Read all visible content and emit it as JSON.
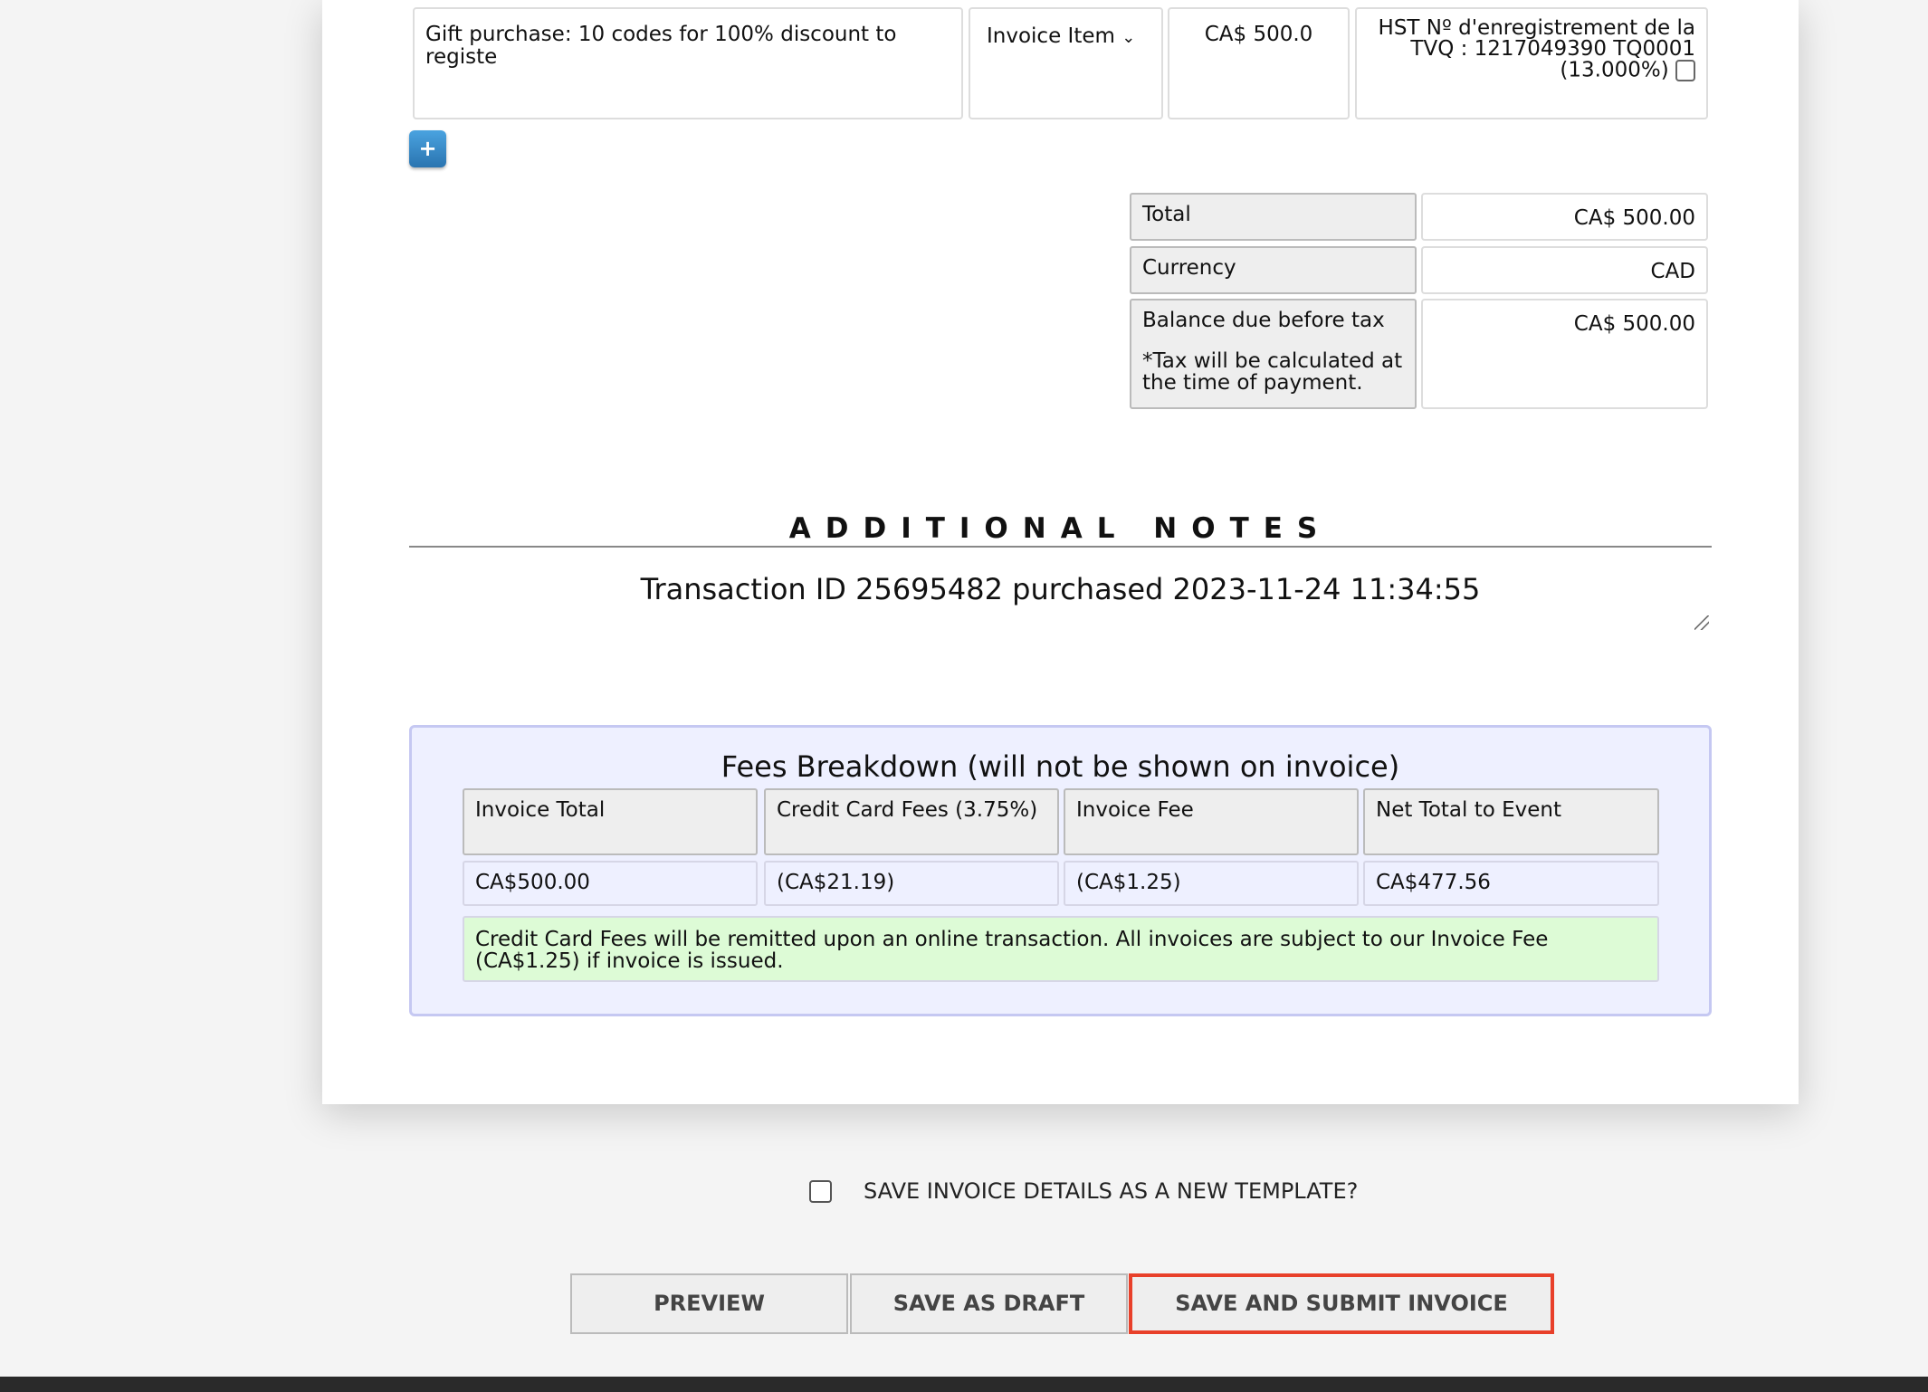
{
  "line_item": {
    "description": "Gift purchase: 10 codes for 100% discount to registe",
    "type": "Invoice Item",
    "amount": "CA$ 500.0",
    "tax_line1": "HST Nº d'enregistrement de la",
    "tax_line2": "TVQ : 1217049390 TQ0001",
    "tax_line3": "(13.000%)",
    "tax_checked": false
  },
  "add_button": "+",
  "totals": [
    {
      "label": "Total",
      "value": "CA$ 500.00"
    },
    {
      "label": "Currency",
      "value": "CAD"
    },
    {
      "label": "Balance due before tax",
      "note": "*Tax will be calculated at the time of payment.",
      "value": "CA$ 500.00"
    }
  ],
  "notes": {
    "heading": "ADDITIONAL NOTES",
    "text": "Transaction ID 25695482 purchased 2023-11-24 11:34:55"
  },
  "fees": {
    "title": "Fees Breakdown (will not be shown on invoice)",
    "headers": [
      "Invoice Total",
      "Credit Card Fees (3.75%)",
      "Invoice Fee",
      "Net Total to Event"
    ],
    "values": [
      "CA$500.00",
      "(CA$21.19)",
      "(CA$1.25)",
      "CA$477.56"
    ],
    "notice": "Credit Card Fees will be remitted upon an online transaction. All invoices are subject to our Invoice Fee (CA$1.25) if invoice is issued."
  },
  "template_checkbox": {
    "label": "SAVE INVOICE DETAILS AS A NEW TEMPLATE?",
    "checked": false
  },
  "buttons": {
    "preview": "PREVIEW",
    "draft": "SAVE AS DRAFT",
    "submit": "SAVE AND SUBMIT INVOICE"
  },
  "colors": {
    "submit_highlight": "#e8402a",
    "fees_bg": "#eef0ff",
    "notice_bg": "#ddfbd6",
    "add_button": "#3a8cd0"
  }
}
